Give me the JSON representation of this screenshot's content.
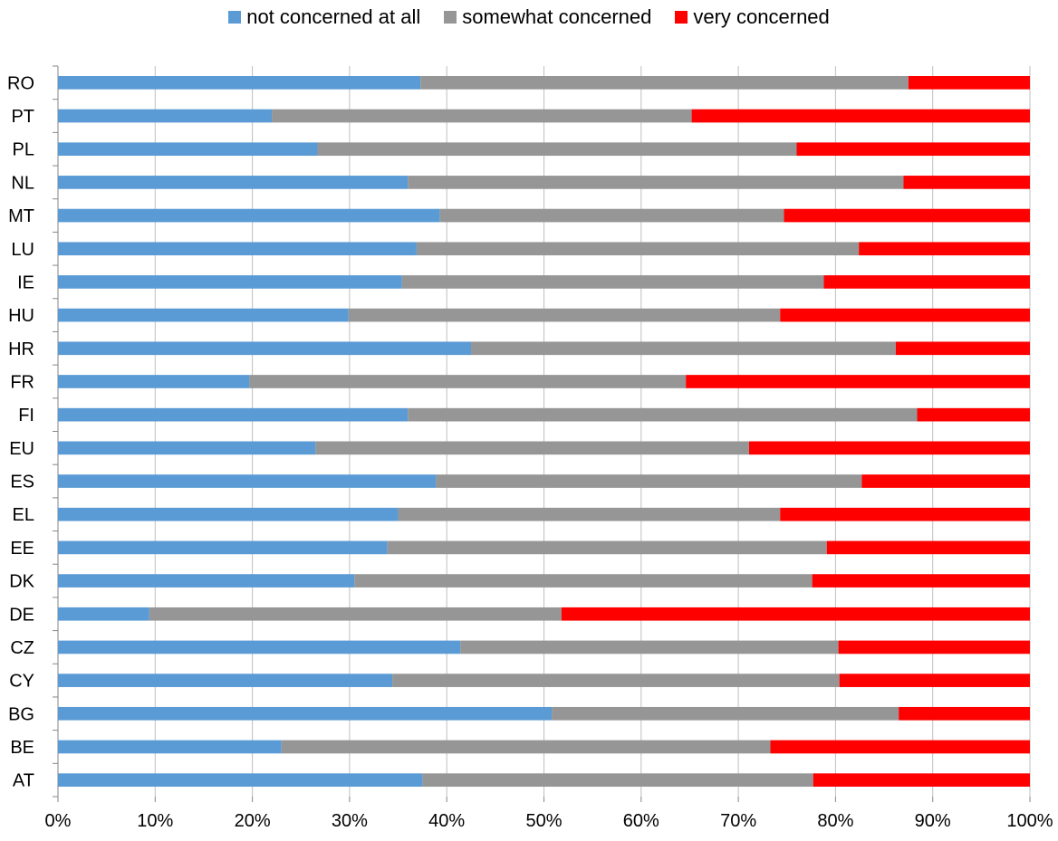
{
  "chart_data": {
    "type": "bar",
    "orientation": "horizontal",
    "stacked": true,
    "title": "",
    "xlabel": "",
    "ylabel": "",
    "xlim": [
      0,
      100
    ],
    "x_ticks": [
      "0%",
      "10%",
      "20%",
      "30%",
      "40%",
      "50%",
      "60%",
      "70%",
      "80%",
      "90%",
      "100%"
    ],
    "grid": "vertical",
    "legend_position": "top",
    "categories": [
      "AT",
      "BE",
      "BG",
      "CY",
      "CZ",
      "DE",
      "DK",
      "EE",
      "EL",
      "ES",
      "EU",
      "FI",
      "FR",
      "HR",
      "HU",
      "IE",
      "LU",
      "MT",
      "NL",
      "PL",
      "PT",
      "RO"
    ],
    "series": [
      {
        "name": "not concerned at all",
        "color": "#5b9bd5",
        "values": [
          37.5,
          23.0,
          50.8,
          34.4,
          41.4,
          9.4,
          30.5,
          33.9,
          35.0,
          38.9,
          26.5,
          36.0,
          19.7,
          42.5,
          29.9,
          35.4,
          36.9,
          39.3,
          36.0,
          26.7,
          22.0,
          37.3
        ]
      },
      {
        "name": "somewhat concerned",
        "color": "#969696",
        "values": [
          40.2,
          50.3,
          35.7,
          46.0,
          38.9,
          42.4,
          47.1,
          45.2,
          39.3,
          43.8,
          44.6,
          52.4,
          44.9,
          43.7,
          44.4,
          43.4,
          45.5,
          35.4,
          51.0,
          49.3,
          43.2,
          50.2
        ]
      },
      {
        "name": "very concerned",
        "color": "#ff0000",
        "values": [
          22.3,
          26.7,
          13.5,
          19.6,
          19.7,
          48.2,
          22.4,
          20.9,
          25.7,
          17.3,
          28.9,
          11.6,
          35.4,
          13.8,
          25.7,
          21.2,
          17.6,
          25.3,
          13.0,
          24.0,
          34.8,
          12.5
        ]
      }
    ]
  }
}
